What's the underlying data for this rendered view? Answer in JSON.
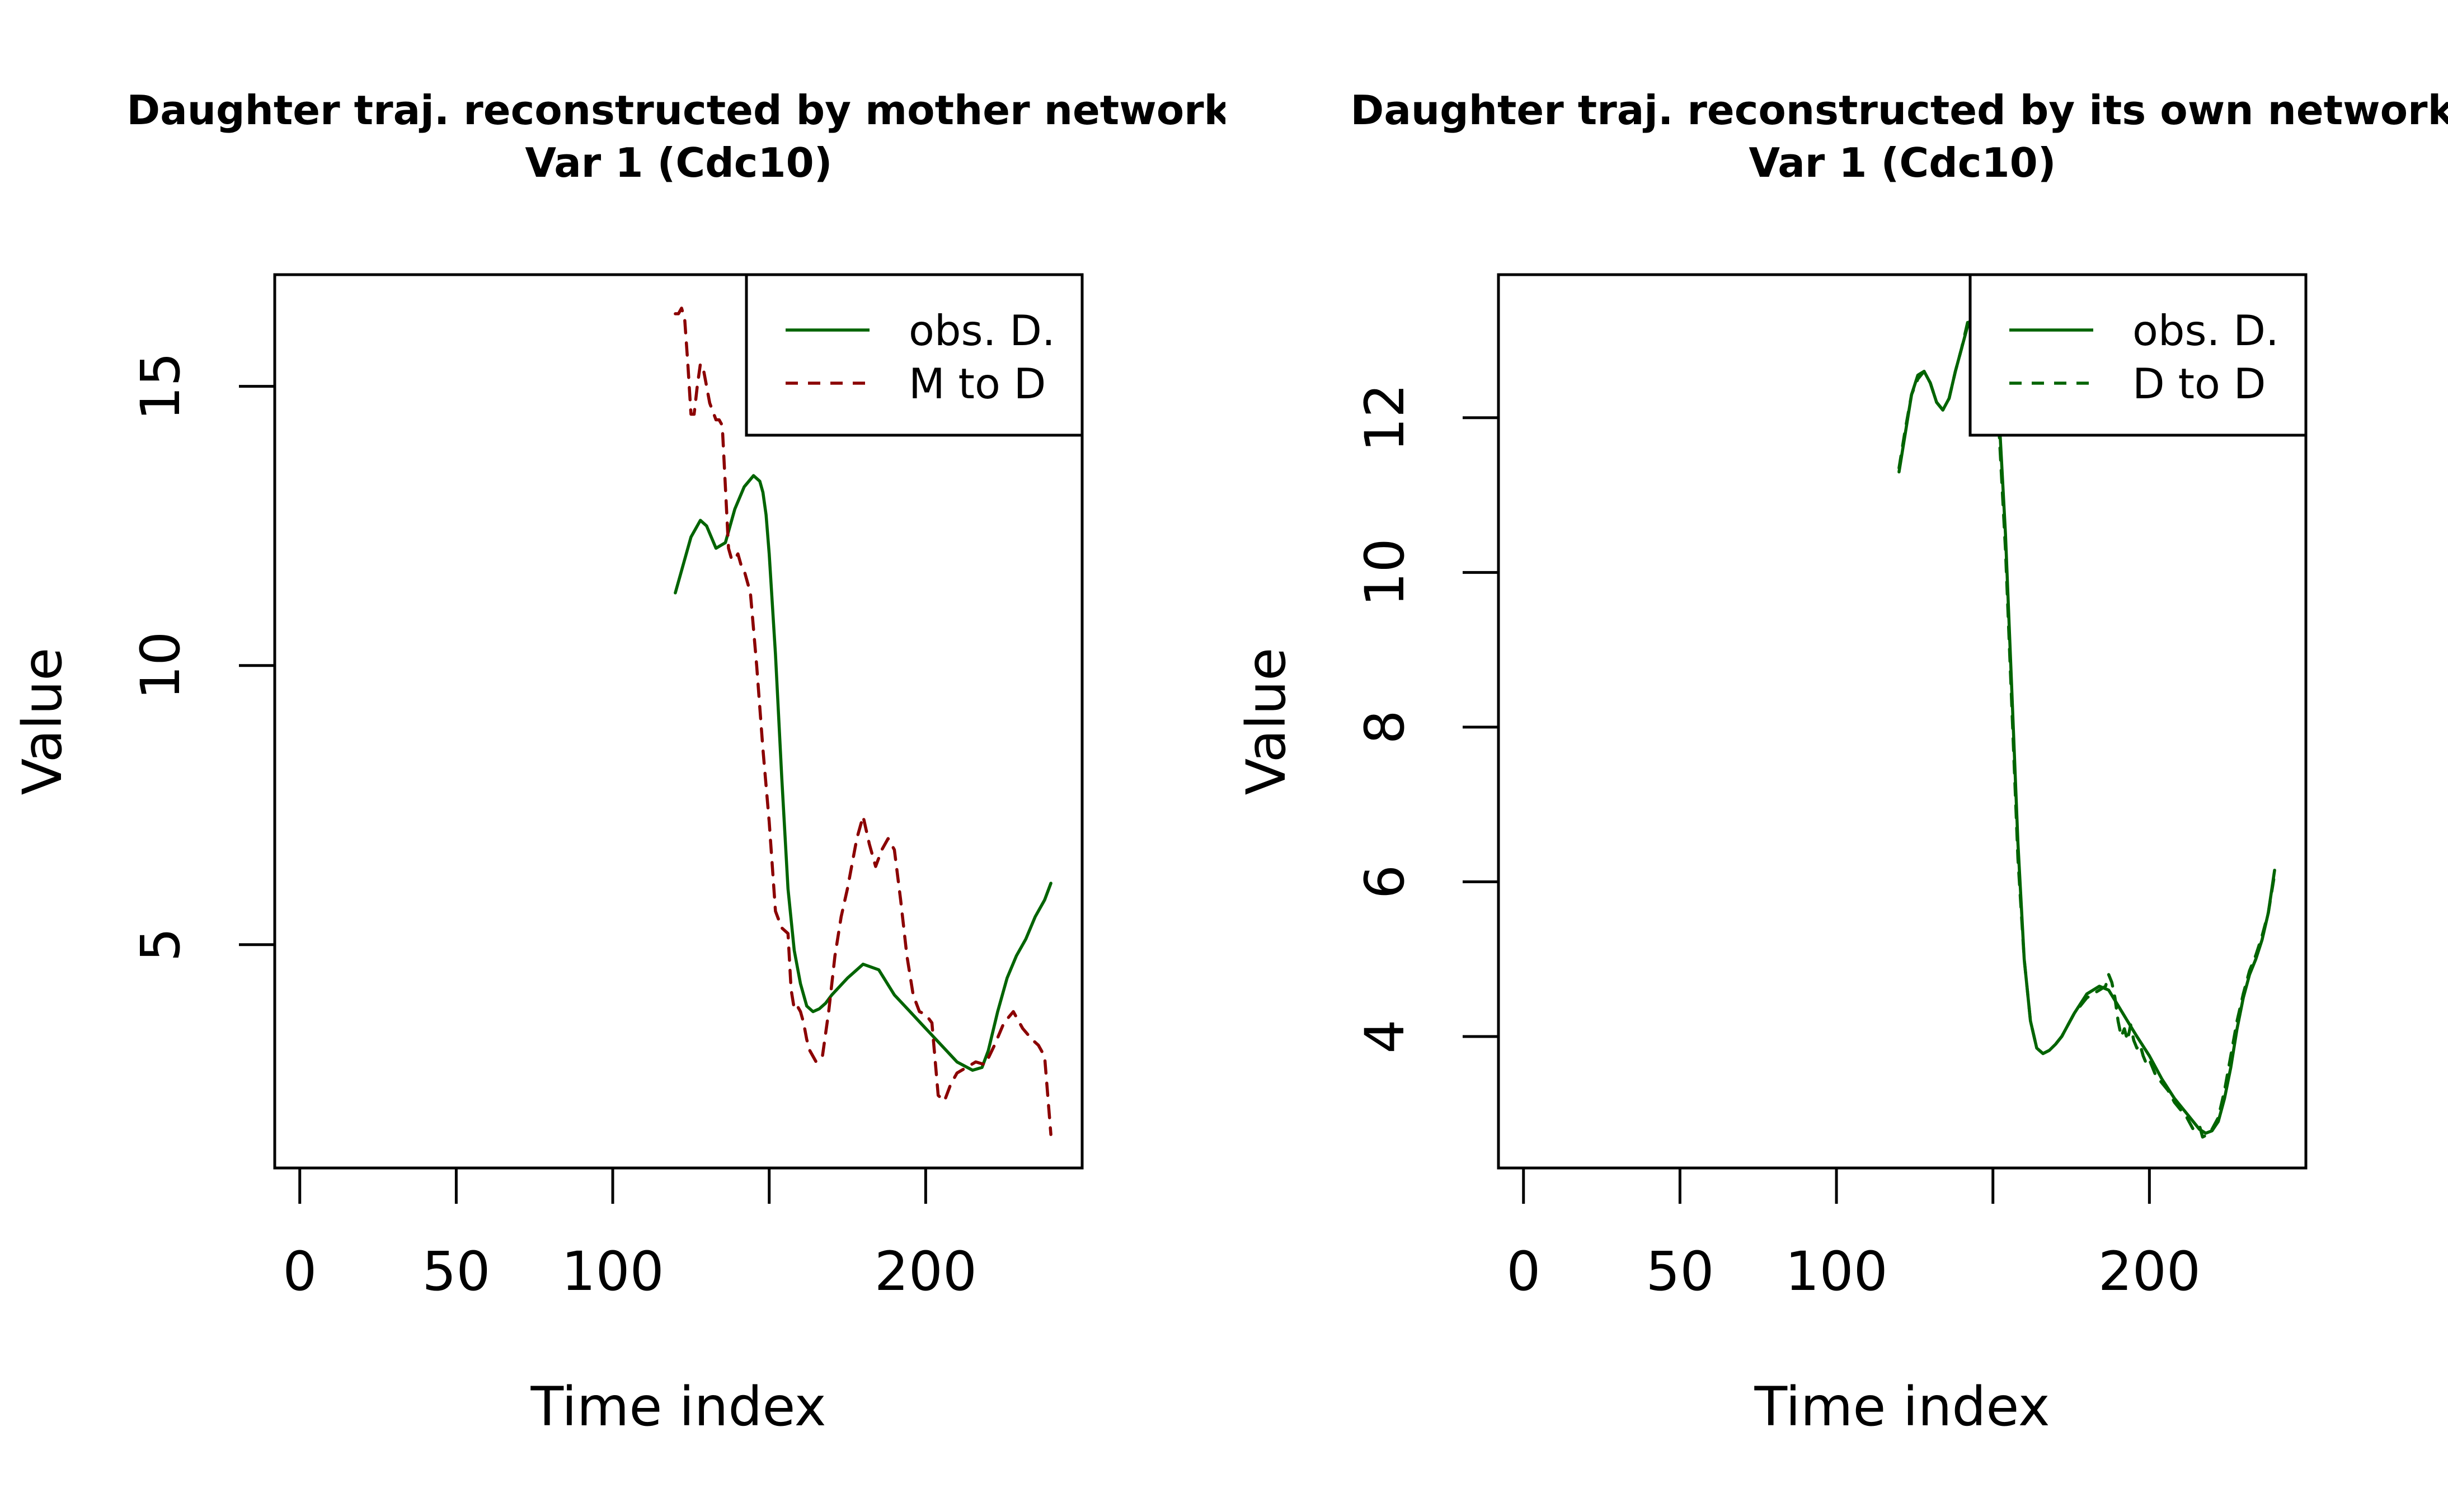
{
  "chart_data": [
    {
      "type": "line",
      "title": "Daughter traj. reconstructed by mother network",
      "subtitle": "Var 1 (Cdc10)",
      "xlabel": "Time index",
      "ylabel": "Value",
      "xlim": [
        -8,
        250
      ],
      "ylim": [
        1,
        17
      ],
      "xticks": [
        0,
        50,
        100,
        150,
        200
      ],
      "xtick_labels": [
        "0",
        "50",
        "100",
        "",
        "200"
      ],
      "yticks": [
        5,
        10,
        15
      ],
      "yticks_labels": [
        "5",
        "10",
        "15"
      ],
      "legend": {
        "position": "top-right",
        "entries": [
          "obs. D.",
          "M to D"
        ]
      },
      "series": [
        {
          "name": "obs. D.",
          "color": "#006400",
          "dash": "solid",
          "x": [
            120,
            125,
            128,
            130,
            133,
            136,
            139,
            142,
            145,
            147,
            148,
            149,
            150,
            152,
            154,
            156,
            158,
            160,
            162,
            164,
            166,
            168,
            170,
            175,
            180,
            185,
            190,
            195,
            200,
            205,
            210,
            215,
            218,
            220,
            223,
            226,
            229,
            232,
            235,
            238,
            240
          ],
          "y": [
            11.3,
            12.3,
            12.6,
            12.5,
            12.1,
            12.2,
            12.8,
            13.2,
            13.4,
            13.3,
            13.1,
            12.7,
            12.0,
            10.2,
            8.0,
            6.0,
            4.9,
            4.3,
            3.9,
            3.8,
            3.85,
            3.95,
            4.1,
            4.4,
            4.65,
            4.55,
            4.1,
            3.8,
            3.5,
            3.2,
            2.9,
            2.75,
            2.8,
            3.1,
            3.8,
            4.4,
            4.8,
            5.1,
            5.5,
            5.8,
            6.1
          ]
        },
        {
          "name": "M to D",
          "color": "#8B0000",
          "dash": "dashed",
          "x": [
            120,
            121,
            122,
            123,
            124,
            125,
            126,
            127,
            128,
            129,
            130,
            131,
            133,
            134,
            135,
            136,
            137,
            138,
            139,
            140,
            141,
            142,
            144,
            146,
            148,
            150,
            152,
            154,
            156,
            157,
            158,
            159,
            160,
            161,
            162,
            163,
            165,
            167,
            169,
            171,
            173,
            175,
            178,
            180,
            182,
            184,
            186,
            188,
            190,
            192,
            194,
            196,
            198,
            200,
            202,
            204,
            206,
            208,
            210,
            213,
            216,
            219,
            222,
            225,
            228,
            231,
            234,
            236,
            238,
            239,
            240
          ],
          "y": [
            16.3,
            16.3,
            16.4,
            16.2,
            15.4,
            14.5,
            14.5,
            15.0,
            15.4,
            15.3,
            15.0,
            14.7,
            14.4,
            14.4,
            14.3,
            13.2,
            12.1,
            11.9,
            11.9,
            12.0,
            11.8,
            11.7,
            11.3,
            10.0,
            8.5,
            7.2,
            5.6,
            5.3,
            5.2,
            4.2,
            3.85,
            3.9,
            3.8,
            3.6,
            3.3,
            3.1,
            2.9,
            3.0,
            3.8,
            4.8,
            5.5,
            6.0,
            6.9,
            7.3,
            6.8,
            6.4,
            6.7,
            6.9,
            6.7,
            5.8,
            4.8,
            4.1,
            3.8,
            3.75,
            3.6,
            2.3,
            2.2,
            2.5,
            2.7,
            2.8,
            2.9,
            2.85,
            3.2,
            3.6,
            3.8,
            3.5,
            3.3,
            3.2,
            3.0,
            2.3,
            1.6
          ]
        }
      ]
    },
    {
      "type": "line",
      "title": "Daughter traj. reconstructed by its own network",
      "subtitle": "Var 1 (Cdc10)",
      "xlabel": "Time index",
      "ylabel": "Value",
      "xlim": [
        -8,
        250
      ],
      "ylim": [
        2.3,
        13.85
      ],
      "xticks": [
        0,
        50,
        100,
        150,
        200
      ],
      "xtick_labels": [
        "0",
        "50",
        "100",
        "",
        "200"
      ],
      "yticks": [
        4,
        6,
        8,
        10,
        12
      ],
      "yticks_labels": [
        "4",
        "6",
        "8",
        "10",
        "12"
      ],
      "legend": {
        "position": "top-right",
        "entries": [
          "obs. D.",
          "D to D"
        ]
      },
      "series": [
        {
          "name": "obs. D.",
          "color": "#006400",
          "dash": "solid",
          "x": [
            120,
            122,
            124,
            126,
            128,
            130,
            132,
            134,
            136,
            138,
            140,
            142,
            144,
            146,
            148,
            149,
            150,
            151,
            152,
            154,
            156,
            158,
            160,
            162,
            164,
            166,
            168,
            170,
            172,
            176,
            180,
            184,
            187,
            190,
            193,
            196,
            200,
            204,
            208,
            212,
            216,
            218,
            220,
            222,
            224,
            226,
            228,
            230,
            232,
            234,
            236,
            238,
            240
          ],
          "y": [
            11.3,
            11.8,
            12.3,
            12.55,
            12.6,
            12.45,
            12.2,
            12.1,
            12.25,
            12.6,
            12.9,
            13.2,
            13.35,
            13.45,
            13.35,
            13.2,
            12.9,
            12.5,
            12.0,
            10.5,
            8.5,
            6.5,
            5.0,
            4.2,
            3.85,
            3.78,
            3.82,
            3.9,
            4.0,
            4.3,
            4.55,
            4.65,
            4.6,
            4.4,
            4.2,
            4.0,
            3.75,
            3.45,
            3.2,
            3.0,
            2.8,
            2.75,
            2.78,
            2.9,
            3.2,
            3.6,
            4.1,
            4.5,
            4.8,
            5.0,
            5.25,
            5.6,
            6.15
          ]
        },
        {
          "name": "D to D",
          "color": "#006400",
          "dash": "dashed",
          "x": [
            120,
            122,
            124,
            126,
            128,
            130,
            132,
            134,
            136,
            138,
            140,
            142,
            144,
            146,
            148,
            149,
            150,
            151,
            152,
            154,
            156,
            158,
            160,
            162,
            164,
            166,
            168,
            170,
            172,
            176,
            180,
            184,
            186,
            187,
            188,
            189,
            190,
            191,
            192,
            193,
            194,
            195,
            196,
            197,
            198,
            199,
            200,
            202,
            204,
            206,
            208,
            210,
            212,
            214,
            216,
            217,
            218,
            219,
            220,
            222,
            224,
            226,
            228,
            230,
            232,
            234,
            236,
            238,
            240
          ],
          "y": [
            11.35,
            11.85,
            12.3,
            12.5,
            12.6,
            12.45,
            12.2,
            12.1,
            12.25,
            12.6,
            12.9,
            13.25,
            13.4,
            13.45,
            13.3,
            13.1,
            12.7,
            12.4,
            11.8,
            10.3,
            8.3,
            6.3,
            5.0,
            4.2,
            3.85,
            3.78,
            3.82,
            3.9,
            4.0,
            4.3,
            4.5,
            4.6,
            4.65,
            4.8,
            4.7,
            4.5,
            4.2,
            4.0,
            4.1,
            3.95,
            4.15,
            3.95,
            3.85,
            3.9,
            3.75,
            3.65,
            3.7,
            3.5,
            3.4,
            3.3,
            3.15,
            3.05,
            2.95,
            2.8,
            2.85,
            2.7,
            2.72,
            2.75,
            2.8,
            2.95,
            3.3,
            3.75,
            4.2,
            4.55,
            4.85,
            5.05,
            5.3,
            5.6,
            6.1
          ]
        }
      ]
    }
  ]
}
